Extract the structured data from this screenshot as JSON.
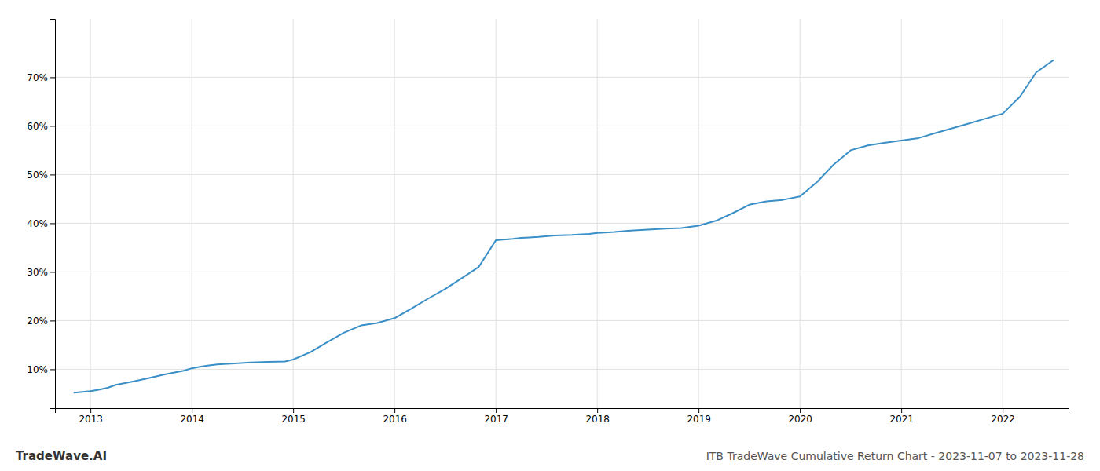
{
  "chart_data": {
    "type": "line",
    "title": "ITB TradeWave Cumulative Return Chart - 2023-11-07 to 2023-11-28",
    "annotations": [
      "TradeWave.AI"
    ],
    "color": "#3a8fc7",
    "grid": true,
    "x": [
      2012.84,
      2013.0,
      2013.08,
      2013.17,
      2013.25,
      2013.42,
      2013.58,
      2013.75,
      2013.92,
      2014.0,
      2014.08,
      2014.17,
      2014.25,
      2014.42,
      2014.58,
      2014.75,
      2014.92,
      2015.0,
      2015.17,
      2015.33,
      2015.5,
      2015.67,
      2015.83,
      2016.0,
      2016.17,
      2016.33,
      2016.5,
      2016.67,
      2016.83,
      2017.0,
      2017.17,
      2017.25,
      2017.33,
      2017.42,
      2017.58,
      2017.75,
      2017.92,
      2018.0,
      2018.17,
      2018.33,
      2018.5,
      2018.67,
      2018.83,
      2019.0,
      2019.17,
      2019.33,
      2019.5,
      2019.67,
      2019.83,
      2020.0,
      2020.17,
      2020.33,
      2020.5,
      2020.67,
      2020.83,
      2021.0,
      2021.17,
      2021.33,
      2021.5,
      2021.67,
      2021.83,
      2022.0,
      2022.17,
      2022.33,
      2022.5
    ],
    "values": [
      5.2,
      5.5,
      5.8,
      6.2,
      6.8,
      7.5,
      8.2,
      9.0,
      9.7,
      10.2,
      10.5,
      10.8,
      11.0,
      11.2,
      11.4,
      11.5,
      11.6,
      12.0,
      13.5,
      15.5,
      17.5,
      19.0,
      19.5,
      20.5,
      22.5,
      24.5,
      26.5,
      28.8,
      31.0,
      36.5,
      36.8,
      37.0,
      37.1,
      37.2,
      37.5,
      37.6,
      37.8,
      38.0,
      38.2,
      38.5,
      38.7,
      38.9,
      39.0,
      39.5,
      40.5,
      42.0,
      43.8,
      44.5,
      44.8,
      45.5,
      48.5,
      52.0,
      55.0,
      56.0,
      56.5,
      57.0,
      57.5,
      58.5,
      59.5,
      60.5,
      61.5,
      62.5,
      66.0,
      71.0,
      73.5
    ],
    "xlim": [
      2012.65,
      2022.65
    ],
    "xticks": [
      2013,
      2014,
      2015,
      2016,
      2017,
      2018,
      2019,
      2020,
      2021,
      2022
    ],
    "ylim": [
      2,
      82
    ],
    "yticks": [
      {
        "value": 10,
        "label": "10%"
      },
      {
        "value": 20,
        "label": "20%"
      },
      {
        "value": 30,
        "label": "30%"
      },
      {
        "value": 40,
        "label": "40%"
      },
      {
        "value": 50,
        "label": "50%"
      },
      {
        "value": 60,
        "label": "60%"
      },
      {
        "value": 70,
        "label": "70%"
      }
    ]
  }
}
